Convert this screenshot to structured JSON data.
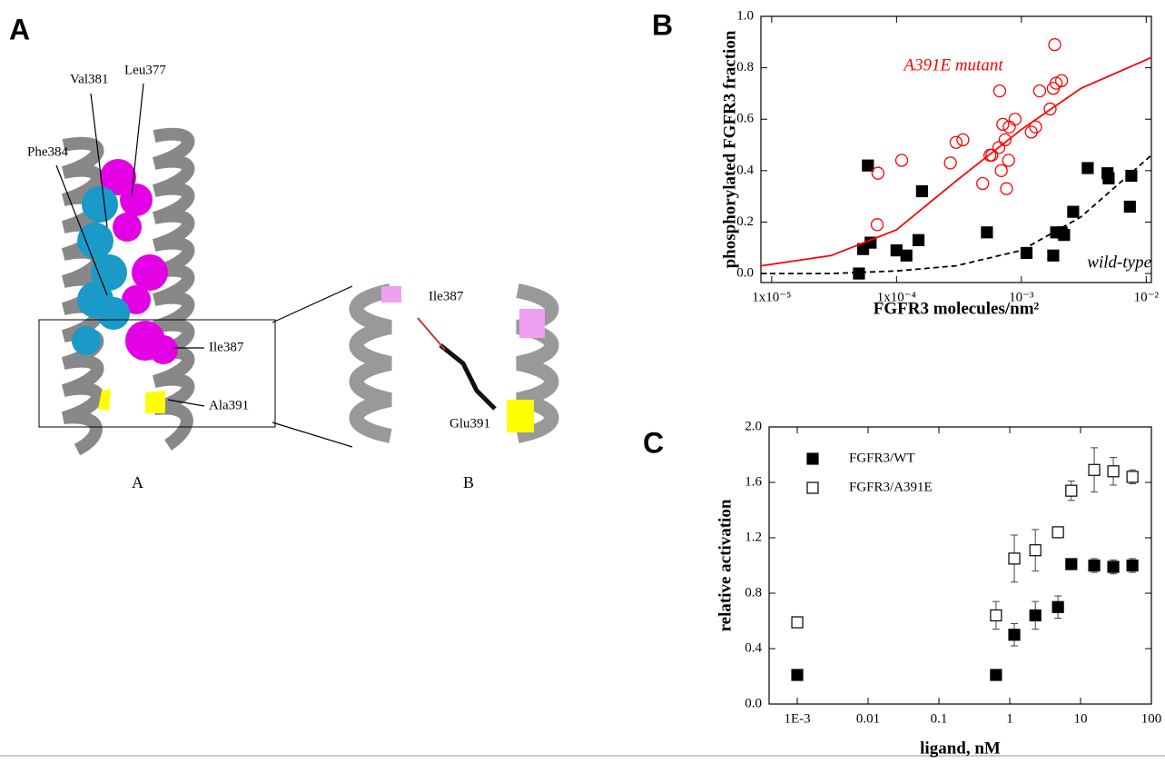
{
  "panel_letters": [
    "A",
    "B",
    "C"
  ],
  "panel_a": {
    "labels": [
      "Val381",
      "Leu377",
      "Phe384",
      "Ile387",
      "Ala391",
      "A"
    ],
    "inset_labels": [
      "Ile387",
      "Glu391",
      "B"
    ]
  },
  "chart_data": [
    {
      "type": "scatter",
      "xscale": "log",
      "xlabel": "FGFR3 molecules/nm²",
      "ylabel": "phosphorylated FGFR3 fraction",
      "xlim": [
        8.2e-06,
        0.011
      ],
      "ylim": [
        -0.035,
        1.0
      ],
      "xticks": [
        {
          "value": 1e-05,
          "label": "1x10⁻⁵"
        },
        {
          "value": 0.0001,
          "label": "1x10⁻⁴"
        },
        {
          "value": 0.001,
          "label": "10⁻³"
        },
        {
          "value": 0.01,
          "label": "10⁻²"
        }
      ],
      "yticks": [
        {
          "value": 0,
          "label": "0.0"
        },
        0.2,
        0.4,
        0.6,
        0.8,
        {
          "value": 1,
          "label": "1.0"
        }
      ],
      "series": [
        {
          "marker": "square-filled",
          "color": "#000000",
          "x": [
            5e-05,
            5.4e-05,
            6.2e-05,
            0.0001,
            0.00012,
            0.00015,
            0.00016,
            5.9e-05,
            0.00053,
            0.0011,
            0.0018,
            0.0019,
            0.0021,
            0.0022,
            0.0026,
            0.0034,
            0.0049,
            0.005,
            0.0074,
            0.0076
          ],
          "values": [
            0,
            0.095,
            0.12,
            0.09,
            0.07,
            0.13,
            0.32,
            0.42,
            0.16,
            0.08,
            0.07,
            0.16,
            0.16,
            0.15,
            0.24,
            0.41,
            0.39,
            0.37,
            0.26,
            0.38
          ]
        },
        {
          "marker": "circle-open",
          "color": "#ff0000",
          "x": [
            7e-05,
            7.1e-05,
            0.00011,
            0.00027,
            0.0003,
            0.00034,
            0.00049,
            0.00056,
            0.00058,
            0.00066,
            0.00067,
            0.00069,
            0.00071,
            0.00074,
            0.00079,
            0.00076,
            0.0008,
            0.00089,
            0.0012,
            0.0013,
            0.0014,
            0.0017,
            0.0018,
            0.0019,
            0.00185,
            0.0021
          ],
          "values": [
            0.19,
            0.39,
            0.44,
            0.43,
            0.51,
            0.52,
            0.35,
            0.46,
            0.46,
            0.49,
            0.71,
            0.4,
            0.58,
            0.52,
            0.44,
            0.33,
            0.57,
            0.6,
            0.55,
            0.57,
            0.71,
            0.64,
            0.72,
            0.74,
            0.89,
            0.75
          ]
        },
        {
          "marker": "line",
          "color": "#ff0000",
          "x": [
            8.2e-06,
            3e-05,
            0.0001,
            0.0003,
            0.001,
            0.003,
            0.011
          ],
          "values": [
            0.03,
            0.07,
            0.17,
            0.36,
            0.56,
            0.72,
            0.84
          ]
        },
        {
          "marker": "dashed-line",
          "color": "#000000",
          "x": [
            8.2e-06,
            3e-05,
            0.0001,
            0.0003,
            0.001,
            0.003,
            0.011
          ],
          "values": [
            0,
            0,
            0.01,
            0.03,
            0.09,
            0.22,
            0.46
          ]
        }
      ],
      "annotations": [
        {
          "text": "A391E mutant",
          "color": "#ff0000"
        },
        {
          "text": "wild-type",
          "color": "#000000"
        }
      ]
    },
    {
      "type": "scatter",
      "xscale": "log",
      "xlabel": "ligand, nM",
      "ylabel": "relative activation",
      "xlim": [
        0.0004,
        100
      ],
      "ylim": [
        0,
        2.0
      ],
      "xticks": [
        {
          "value": 0.001,
          "label": "1E-3"
        },
        0.01,
        0.1,
        1,
        10,
        100
      ],
      "yticks": [
        {
          "value": 0,
          "label": "0.0"
        },
        0.4,
        0.8,
        1.2,
        1.6,
        {
          "value": 2,
          "label": "2.0"
        }
      ],
      "series": [
        {
          "name": "FGFR3/WT",
          "marker": "square-filled",
          "color": "#000000",
          "x": [
            0.001,
            0.64,
            1.16,
            2.3,
            4.8,
            7.4,
            15.6,
            29,
            54
          ],
          "values": [
            0.21,
            0.21,
            0.5,
            0.64,
            0.7,
            1.01,
            1.0,
            0.99,
            1.0
          ],
          "errors": [
            0.02,
            0.02,
            0.08,
            0.1,
            0.08,
            0.03,
            0.05,
            0.05,
            0.05
          ]
        },
        {
          "name": "FGFR3/A391E",
          "marker": "square-open",
          "color": "#000000",
          "x": [
            0.001,
            0.64,
            1.16,
            2.3,
            4.8,
            7.4,
            15.6,
            29,
            54
          ],
          "values": [
            0.59,
            0.64,
            1.05,
            1.11,
            1.24,
            1.54,
            1.69,
            1.68,
            1.64
          ],
          "errors": [
            0.02,
            0.1,
            0.17,
            0.15,
            0.03,
            0.07,
            0.16,
            0.1,
            0.05
          ]
        }
      ]
    }
  ]
}
